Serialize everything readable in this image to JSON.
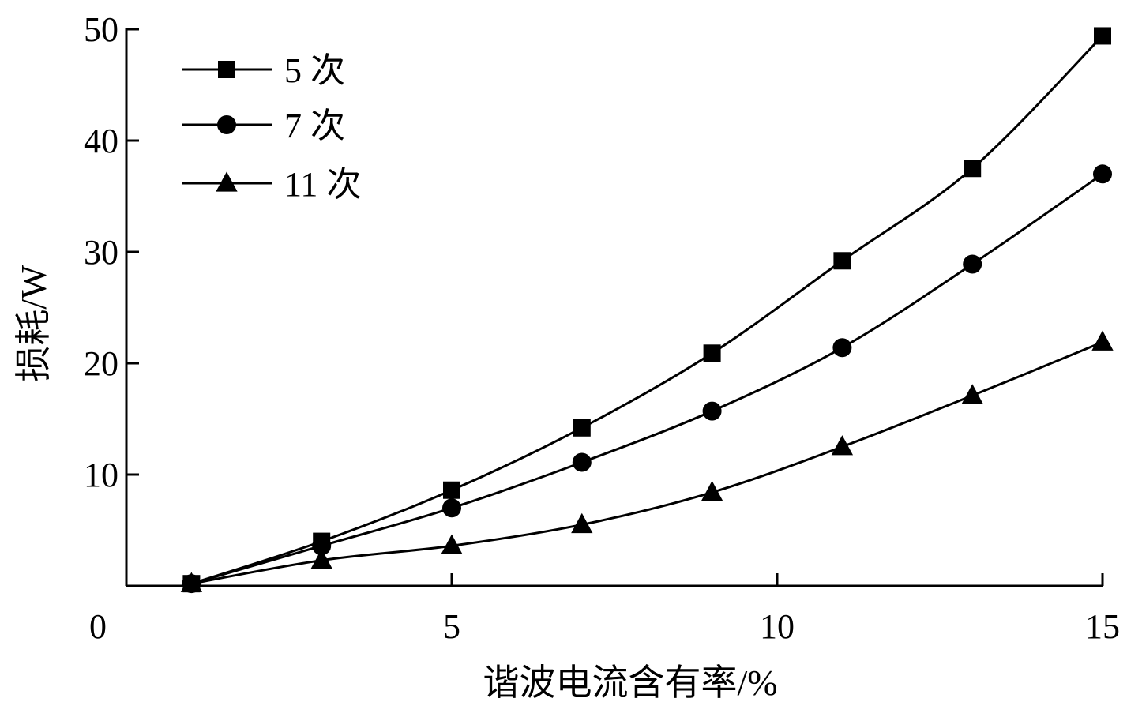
{
  "chart_data": {
    "type": "line",
    "title": "",
    "xlabel": "谐波电流含有率/%",
    "ylabel": "损耗/W",
    "xlim": [
      0,
      15
    ],
    "ylim": [
      0,
      50
    ],
    "x_ticks": [
      "0",
      "5",
      "10",
      "15"
    ],
    "y_ticks": [
      "10",
      "20",
      "30",
      "40",
      "50"
    ],
    "x_tick_values": [
      0,
      5,
      10,
      15
    ],
    "y_tick_values": [
      10,
      20,
      30,
      40,
      50
    ],
    "grid": false,
    "legend_position": "top-left",
    "series": [
      {
        "name": "5 次",
        "marker": "square",
        "x": [
          1,
          3,
          5,
          7,
          9,
          11,
          13,
          15
        ],
        "values": [
          0.2,
          4.0,
          8.6,
          14.2,
          20.9,
          29.2,
          37.5,
          49.4
        ]
      },
      {
        "name": "7 次",
        "marker": "circle",
        "x": [
          1,
          3,
          5,
          7,
          9,
          11,
          13,
          15
        ],
        "values": [
          0.2,
          3.6,
          7.0,
          11.1,
          15.7,
          21.4,
          28.9,
          37.0
        ]
      },
      {
        "name": "11 次",
        "marker": "triangle",
        "x": [
          1,
          3,
          5,
          7,
          9,
          11,
          13,
          15
        ],
        "values": [
          0.2,
          2.3,
          3.6,
          5.5,
          8.4,
          12.5,
          17.1,
          21.9
        ]
      }
    ],
    "colors": {
      "line": "#000000",
      "background": "#ffffff"
    }
  }
}
